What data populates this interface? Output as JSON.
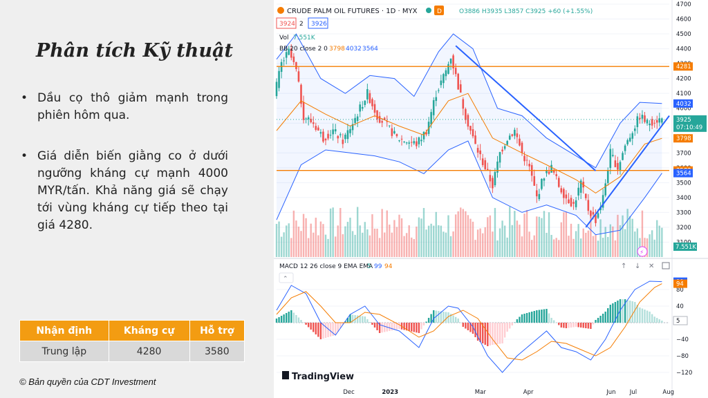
{
  "slide": {
    "title": "Phân tích Kỹ thuật",
    "bullets": [
      "Dầu cọ thô giảm mạnh trong phiên hôm qua.",
      "Giá diễn biến giằng co ở dưới ngưỡng kháng cự mạnh 4000 MYR/tấn. Khả năng giá sẽ chạy tới vùng kháng cự tiếp theo tại giá 4280."
    ],
    "table": {
      "headers": [
        "Nhận định",
        "Kháng cự",
        "Hỗ trợ"
      ],
      "row": [
        "Trung lập",
        "4280",
        "3580"
      ]
    },
    "copyright": "© Bản quyền của CDT Investment"
  },
  "chart_header": {
    "symbol": "CRUDE PALM OIL FUTURES · 1D · MYX",
    "ohlc": "O3886 H3935 L3857 C3925 +60 (+1.55%)",
    "badge": "D",
    "bid": "3924",
    "spread": "2",
    "ask": "3926",
    "vol_label": "Vol",
    "vol_value": "7.551K",
    "bb_label": "BB 20 close 2 0",
    "bb_mid": "3798",
    "bb_upper": "4032",
    "bb_lower": "3564",
    "macd_label": "MACD 12 26 close 9 EMA EMA",
    "macd_a": "5",
    "macd_b": "99",
    "macd_c": "94",
    "logo": "TradingView",
    "price_tag": "3925",
    "countdown": "07:10:49",
    "vol_tag": "7.551K"
  },
  "chart_data": [
    {
      "type": "candlestick",
      "ylim": [
        3000,
        4700
      ],
      "y_ticks": [
        3100,
        3200,
        3300,
        3400,
        3500,
        3600,
        3700,
        3800,
        3900,
        4000,
        4100,
        4200,
        4300,
        4400,
        4500,
        4600,
        4700
      ],
      "x_labels": [
        "Dec",
        "2023",
        "Mar",
        "Apr",
        "Jun",
        "Jul",
        "Aug"
      ],
      "horizontal_levels": [
        4281,
        3582
      ],
      "price_axis_tags": [
        {
          "value": "4281",
          "color": "#f57c00"
        },
        {
          "value": "4032",
          "color": "#2962ff"
        },
        {
          "value": "3925",
          "color": "#26a69a"
        },
        {
          "value": "3798",
          "color": "#f57c00"
        },
        {
          "value": "3582",
          "color": "#f57c00"
        },
        {
          "value": "3564",
          "color": "#2962ff"
        }
      ],
      "close_path": [
        [
          0,
          4080
        ],
        [
          3,
          4300
        ],
        [
          6,
          4380
        ],
        [
          9,
          4250
        ],
        [
          12,
          3950
        ],
        [
          16,
          3900
        ],
        [
          20,
          3800
        ],
        [
          24,
          3850
        ],
        [
          28,
          3780
        ],
        [
          32,
          3900
        ],
        [
          35,
          4000
        ],
        [
          38,
          4100
        ],
        [
          42,
          3950
        ],
        [
          46,
          3880
        ],
        [
          50,
          3800
        ],
        [
          54,
          3780
        ],
        [
          58,
          3760
        ],
        [
          62,
          3850
        ],
        [
          66,
          4100
        ],
        [
          70,
          4250
        ],
        [
          72,
          4350
        ],
        [
          75,
          4150
        ],
        [
          78,
          3950
        ],
        [
          82,
          3750
        ],
        [
          86,
          3600
        ],
        [
          89,
          3480
        ],
        [
          92,
          3700
        ],
        [
          95,
          3800
        ],
        [
          98,
          3850
        ],
        [
          101,
          3700
        ],
        [
          104,
          3600
        ],
        [
          107,
          3400
        ],
        [
          110,
          3550
        ],
        [
          113,
          3600
        ],
        [
          116,
          3480
        ],
        [
          119,
          3400
        ],
        [
          122,
          3350
        ],
        [
          125,
          3500
        ],
        [
          128,
          3320
        ],
        [
          131,
          3250
        ],
        [
          134,
          3400
        ],
        [
          137,
          3700
        ],
        [
          140,
          3600
        ],
        [
          143,
          3750
        ],
        [
          146,
          3850
        ],
        [
          149,
          3950
        ],
        [
          152,
          3900
        ],
        [
          155,
          3920
        ],
        [
          157,
          3925
        ]
      ],
      "trendlines": [
        {
          "from": [
            73,
            4420
          ],
          "to": [
            130,
            3580
          ]
        },
        {
          "from": [
            126,
            3200
          ],
          "to": [
            160,
            3950
          ]
        }
      ],
      "bb_upper_path": [
        [
          0,
          4330
        ],
        [
          8,
          4500
        ],
        [
          18,
          4200
        ],
        [
          28,
          4100
        ],
        [
          38,
          4220
        ],
        [
          48,
          4200
        ],
        [
          56,
          4080
        ],
        [
          66,
          4380
        ],
        [
          72,
          4500
        ],
        [
          80,
          4400
        ],
        [
          90,
          4000
        ],
        [
          100,
          3950
        ],
        [
          110,
          3800
        ],
        [
          122,
          3680
        ],
        [
          130,
          3600
        ],
        [
          140,
          3900
        ],
        [
          148,
          4040
        ],
        [
          157,
          4032
        ]
      ],
      "bb_mid_path": [
        [
          0,
          3850
        ],
        [
          10,
          4050
        ],
        [
          20,
          3960
        ],
        [
          30,
          3880
        ],
        [
          40,
          3950
        ],
        [
          50,
          3880
        ],
        [
          60,
          3820
        ],
        [
          70,
          4050
        ],
        [
          78,
          4100
        ],
        [
          88,
          3800
        ],
        [
          100,
          3700
        ],
        [
          110,
          3620
        ],
        [
          122,
          3520
        ],
        [
          130,
          3430
        ],
        [
          140,
          3540
        ],
        [
          150,
          3760
        ],
        [
          157,
          3798
        ]
      ],
      "bb_lower_path": [
        [
          0,
          3250
        ],
        [
          10,
          3620
        ],
        [
          20,
          3720
        ],
        [
          30,
          3700
        ],
        [
          40,
          3680
        ],
        [
          50,
          3640
        ],
        [
          60,
          3560
        ],
        [
          70,
          3720
        ],
        [
          78,
          3780
        ],
        [
          88,
          3400
        ],
        [
          100,
          3300
        ],
        [
          110,
          3350
        ],
        [
          122,
          3280
        ],
        [
          130,
          3150
        ],
        [
          140,
          3180
        ],
        [
          150,
          3400
        ],
        [
          157,
          3564
        ]
      ],
      "volume_tag": "7.551K"
    },
    {
      "type": "macd",
      "ylim": [
        -135,
        120
      ],
      "y_ticks": [
        -120,
        -80,
        -40,
        0,
        40,
        80
      ],
      "values": {
        "histogram": 5,
        "macd": 99,
        "signal": 94
      },
      "macd_path": [
        [
          0,
          30
        ],
        [
          6,
          90
        ],
        [
          12,
          70
        ],
        [
          18,
          0
        ],
        [
          24,
          -30
        ],
        [
          30,
          20
        ],
        [
          36,
          40
        ],
        [
          42,
          -5
        ],
        [
          50,
          -20
        ],
        [
          58,
          -60
        ],
        [
          64,
          10
        ],
        [
          70,
          40
        ],
        [
          74,
          35
        ],
        [
          80,
          -10
        ],
        [
          86,
          -80
        ],
        [
          92,
          -120
        ],
        [
          98,
          -80
        ],
        [
          104,
          -50
        ],
        [
          110,
          -20
        ],
        [
          116,
          -60
        ],
        [
          122,
          -70
        ],
        [
          128,
          -90
        ],
        [
          134,
          -40
        ],
        [
          140,
          30
        ],
        [
          146,
          80
        ],
        [
          152,
          100
        ],
        [
          157,
          99
        ]
      ],
      "signal_path": [
        [
          0,
          20
        ],
        [
          6,
          60
        ],
        [
          12,
          75
        ],
        [
          18,
          40
        ],
        [
          24,
          0
        ],
        [
          30,
          0
        ],
        [
          36,
          25
        ],
        [
          42,
          20
        ],
        [
          50,
          -5
        ],
        [
          58,
          -35
        ],
        [
          64,
          -20
        ],
        [
          70,
          15
        ],
        [
          76,
          30
        ],
        [
          82,
          10
        ],
        [
          88,
          -40
        ],
        [
          94,
          -85
        ],
        [
          100,
          -90
        ],
        [
          106,
          -70
        ],
        [
          112,
          -45
        ],
        [
          118,
          -50
        ],
        [
          124,
          -65
        ],
        [
          130,
          -80
        ],
        [
          136,
          -60
        ],
        [
          142,
          -10
        ],
        [
          148,
          50
        ],
        [
          154,
          85
        ],
        [
          157,
          94
        ]
      ]
    }
  ]
}
